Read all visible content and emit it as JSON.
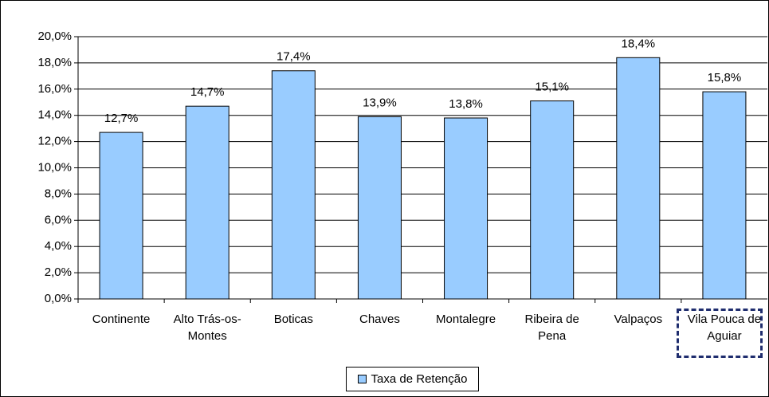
{
  "chart_data": {
    "type": "bar",
    "categories": [
      "Continente",
      "Alto Trás-os-Montes",
      "Boticas",
      "Chaves",
      "Montalegre",
      "Ribeira de Pena",
      "Valpaços",
      "Vila Pouca de Aguiar"
    ],
    "series": [
      {
        "name": "Taxa de Retenção",
        "color": "#99ccff",
        "values": [
          12.7,
          14.7,
          17.4,
          13.9,
          13.8,
          15.1,
          18.4,
          15.8
        ],
        "value_labels": [
          "12,7%",
          "14,7%",
          "17,4%",
          "13,9%",
          "13,8%",
          "15,1%",
          "18,4%",
          "15,8%"
        ]
      }
    ],
    "ylim": [
      0,
      20
    ],
    "yticks": [
      {
        "value": 0,
        "label": "0,0%"
      },
      {
        "value": 2,
        "label": "2,0%"
      },
      {
        "value": 4,
        "label": "4,0%"
      },
      {
        "value": 6,
        "label": "6,0%"
      },
      {
        "value": 8,
        "label": "8,0%"
      },
      {
        "value": 10,
        "label": "10,0%"
      },
      {
        "value": 12,
        "label": "12,0%"
      },
      {
        "value": 14,
        "label": "14,0%"
      },
      {
        "value": 16,
        "label": "16,0%"
      },
      {
        "value": 18,
        "label": "18,0%"
      },
      {
        "value": 20,
        "label": "20,0%"
      }
    ],
    "grid": true,
    "legend": "bottom"
  }
}
